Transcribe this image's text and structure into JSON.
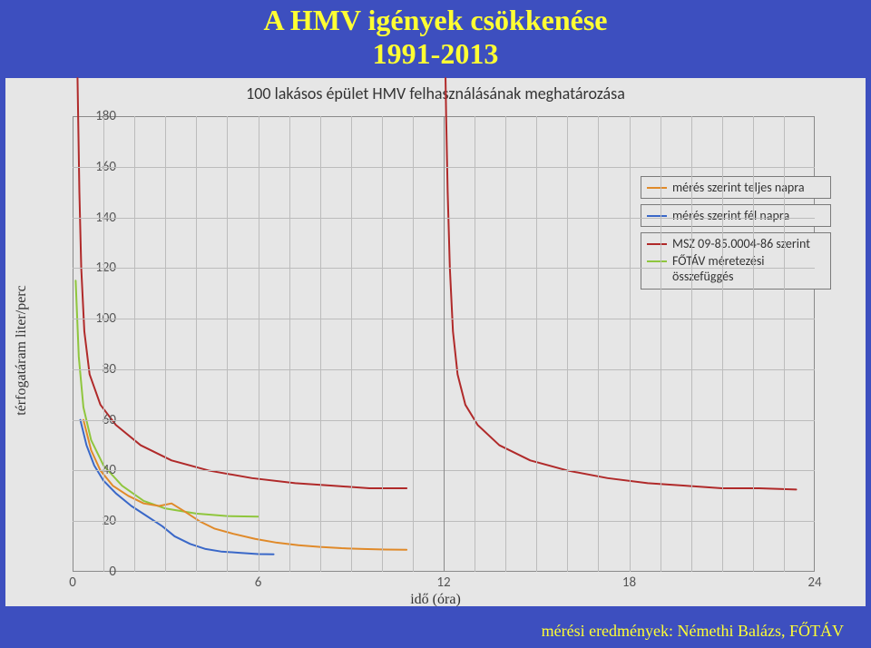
{
  "title": {
    "line1": "A HMV igények csökkenése",
    "line2": "1991-2013"
  },
  "credit": "mérési eredmények: Némethi Balázs, FŐTÁV",
  "chart": {
    "type": "line",
    "title": "100 lakásos épület HMV felhasználásának meghatározása",
    "background_color": "#e6e6e6",
    "grid_color": "#bcbcbc",
    "border_color": "#8a8a8a",
    "xlabel": "idő   (óra)",
    "ylabel": "térfogatáram   liter/perc",
    "xlim": [
      0,
      24
    ],
    "ylim": [
      0,
      180
    ],
    "xticks": [
      0,
      6,
      12,
      18,
      24
    ],
    "yticks": [
      0,
      20,
      40,
      60,
      80,
      100,
      120,
      140,
      160,
      180
    ],
    "v_grid_hours": [
      0,
      1,
      2,
      3,
      4,
      5,
      6,
      7,
      8,
      9,
      10,
      11,
      12,
      13,
      14,
      15,
      16,
      17,
      18,
      19,
      20,
      21,
      22,
      23,
      24
    ],
    "label_fontsize": 16,
    "tick_fontsize": 15,
    "title_fontsize": 18,
    "legend": {
      "items": [
        {
          "label": "mérés szerint teljes napra",
          "color": "#e08a2a"
        },
        {
          "label": "mérés szerint fél napra",
          "color": "#3a68c8"
        },
        {
          "label": "MSZ 09-85.0004-86 szerint",
          "color": "#b02a2a"
        },
        {
          "label": "FŐTÁV méretezési összefüggés",
          "color": "#8fc63d"
        }
      ]
    },
    "series": [
      {
        "name": "msz_left",
        "color": "#b02a2a",
        "width": 2,
        "data": [
          [
            0.16,
            195
          ],
          [
            0.18,
            180
          ],
          [
            0.22,
            150
          ],
          [
            0.28,
            120
          ],
          [
            0.38,
            95
          ],
          [
            0.55,
            78
          ],
          [
            0.9,
            66
          ],
          [
            1.4,
            58
          ],
          [
            2.2,
            50
          ],
          [
            3.2,
            44
          ],
          [
            4.4,
            40
          ],
          [
            5.8,
            37
          ],
          [
            7.2,
            35
          ],
          [
            8.4,
            34
          ],
          [
            9.6,
            33
          ],
          [
            10.8,
            33
          ]
        ]
      },
      {
        "name": "msz_right",
        "color": "#b02a2a",
        "width": 2,
        "data": [
          [
            12.06,
            195
          ],
          [
            12.08,
            180
          ],
          [
            12.13,
            150
          ],
          [
            12.2,
            120
          ],
          [
            12.3,
            95
          ],
          [
            12.45,
            78
          ],
          [
            12.7,
            66
          ],
          [
            13.1,
            58
          ],
          [
            13.8,
            50
          ],
          [
            14.8,
            44
          ],
          [
            16.0,
            40
          ],
          [
            17.3,
            37
          ],
          [
            18.6,
            35
          ],
          [
            19.8,
            34
          ],
          [
            21.0,
            33
          ],
          [
            22.2,
            33
          ],
          [
            23.4,
            32.5
          ]
        ]
      },
      {
        "name": "fotav",
        "color": "#8fc63d",
        "width": 2,
        "data": [
          [
            0.1,
            115
          ],
          [
            0.2,
            85
          ],
          [
            0.35,
            65
          ],
          [
            0.6,
            52
          ],
          [
            1.0,
            42
          ],
          [
            1.6,
            34
          ],
          [
            2.3,
            28
          ],
          [
            3.0,
            25
          ],
          [
            4.0,
            23
          ],
          [
            5.0,
            22
          ],
          [
            6.0,
            21.8
          ]
        ]
      },
      {
        "name": "meres_fel",
        "color": "#3a68c8",
        "width": 2,
        "data": [
          [
            0.25,
            60
          ],
          [
            0.45,
            50
          ],
          [
            0.7,
            42
          ],
          [
            1.0,
            36
          ],
          [
            1.4,
            31
          ],
          [
            1.9,
            26
          ],
          [
            2.4,
            22
          ],
          [
            2.9,
            18
          ],
          [
            3.3,
            14
          ],
          [
            3.8,
            11
          ],
          [
            4.3,
            9
          ],
          [
            4.8,
            8
          ],
          [
            5.4,
            7.5
          ],
          [
            6.0,
            7
          ],
          [
            6.5,
            6.9
          ]
        ]
      },
      {
        "name": "meres_teljes",
        "color": "#e08a2a",
        "width": 2,
        "data": [
          [
            0.35,
            60
          ],
          [
            0.6,
            48
          ],
          [
            0.9,
            40
          ],
          [
            1.3,
            34
          ],
          [
            1.8,
            30
          ],
          [
            2.3,
            27
          ],
          [
            2.8,
            26
          ],
          [
            3.2,
            27
          ],
          [
            3.6,
            24
          ],
          [
            4.1,
            20
          ],
          [
            4.6,
            17
          ],
          [
            5.2,
            15
          ],
          [
            5.9,
            13
          ],
          [
            6.6,
            11.5
          ],
          [
            7.3,
            10.5
          ],
          [
            8.0,
            9.8
          ],
          [
            8.7,
            9.3
          ],
          [
            9.4,
            9.0
          ],
          [
            10.1,
            8.8
          ],
          [
            10.8,
            8.7
          ]
        ]
      }
    ]
  },
  "slide_background": "#3d4fbf",
  "accent_text_color": "#ffff33"
}
